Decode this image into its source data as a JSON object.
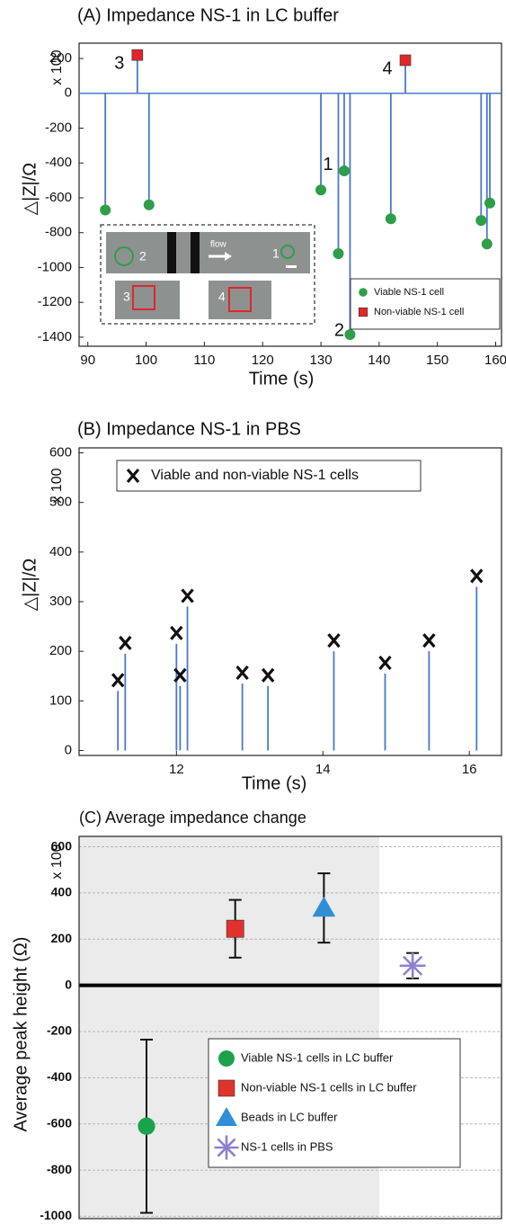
{
  "chart_data": [
    {
      "type": "scatter",
      "stems": true,
      "title": "(A) Impedance NS-1 in LC buffer",
      "x_label": "Time (s)",
      "y_label": "△|Z|/Ω",
      "y_multiplier": "x 100",
      "xlim": [
        88.5,
        161
      ],
      "ylim": [
        -1452,
        288
      ],
      "xticks": [
        90,
        100,
        110,
        120,
        130,
        140,
        150,
        160
      ],
      "yticks": [
        200,
        0,
        -200,
        -400,
        -600,
        -800,
        -1000,
        -1200,
        -1400
      ],
      "line_color": "#4a78c8",
      "series": [
        {
          "name": "Viable NS-1 cell",
          "color": "#2e9e48",
          "marker": "circle",
          "x": [
            93,
            100.5,
            130,
            133,
            134,
            135,
            142,
            157.5,
            158.5,
            159
          ],
          "values": [
            -670,
            -640,
            -555,
            -920,
            -445,
            -1385,
            -720,
            -730,
            -865,
            -630
          ]
        },
        {
          "name": "Non-viable NS-1 cell",
          "color": "#e0262a",
          "marker": "square",
          "x": [
            98.5,
            144.5
          ],
          "values": [
            220,
            190
          ]
        }
      ],
      "annotations": [
        "1",
        "2",
        "3",
        "4"
      ],
      "inset_labels": [
        "2",
        "flow",
        "1",
        "3",
        "4"
      ],
      "legend": "lower right"
    },
    {
      "type": "scatter",
      "stems": true,
      "title": "(B) Impedance NS-1 in PBS",
      "x_label": "Time (s)",
      "y_label": "△|Z|/Ω",
      "y_multiplier": "x 100",
      "xlim": [
        10.67,
        16.44
      ],
      "ylim": [
        -10,
        610
      ],
      "xticks": [
        12,
        14,
        16
      ],
      "yticks": [
        0,
        100,
        200,
        300,
        400,
        500,
        600
      ],
      "line_color": "#4a78c8",
      "series": [
        {
          "name": "Viable and non-viable NS-1 cells",
          "color": "#111111",
          "marker": "x",
          "x": [
            11.2,
            11.3,
            12.0,
            12.05,
            12.15,
            12.9,
            13.25,
            14.15,
            14.85,
            15.45,
            16.1
          ],
          "values": [
            120,
            195,
            215,
            130,
            290,
            135,
            130,
            200,
            155,
            200,
            330
          ]
        }
      ],
      "legend": "upper left"
    },
    {
      "type": "errorbar",
      "title": "(C) Average impedance change",
      "y_label": "Average peak height (Ω)",
      "y_multiplier": "x 100",
      "ylim": [
        -1010,
        645
      ],
      "yticks": [
        600,
        400,
        200,
        0,
        -200,
        -400,
        -600,
        -800,
        -1000
      ],
      "grid": true,
      "categories": [
        null,
        null,
        null,
        null
      ],
      "series": [
        {
          "name": "Viable NS-1 cells in LC buffer",
          "color": "#1aa34a",
          "marker": "circle",
          "values": [
            -610,
            null,
            null,
            null
          ],
          "errors": [
            375,
            null,
            null,
            null
          ]
        },
        {
          "name": "Non-viable NS-1 cells in LC buffer",
          "color": "#e0322a",
          "marker": "square",
          "values": [
            null,
            245,
            null,
            null
          ],
          "errors": [
            null,
            125,
            null,
            null
          ]
        },
        {
          "name": "Beads in LC buffer",
          "color": "#2f8fd6",
          "marker": "triangle",
          "values": [
            null,
            null,
            335,
            null
          ],
          "errors": [
            null,
            null,
            150,
            null
          ]
        },
        {
          "name": "NS-1 cells in PBS",
          "color": "#8f7fd0",
          "marker": "asterisk",
          "values": [
            null,
            null,
            null,
            85
          ],
          "errors": [
            null,
            null,
            null,
            55
          ]
        }
      ],
      "legend": "lower right"
    }
  ]
}
